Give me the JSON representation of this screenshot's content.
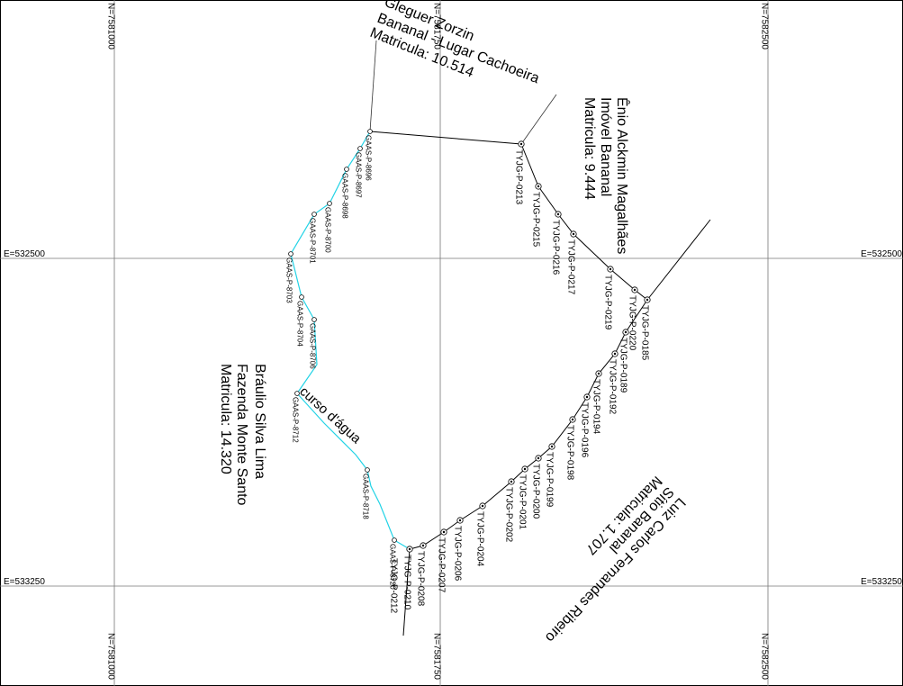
{
  "grid": {
    "north": [
      "N=7581000",
      "N=7581750",
      "N=7582500"
    ],
    "east": [
      "E=532500",
      "E=533250"
    ]
  },
  "owners": [
    {
      "lines": [
        "Gleguer Zorzin",
        "Bananal - Lugar Cachoeira",
        "Matricula: 10.514"
      ]
    },
    {
      "lines": [
        "Ênio Alckmin Magalhães",
        "Imóvel Bananal",
        "Matricula: 9.444"
      ]
    },
    {
      "lines": [
        "Luiz Carlos Fernandes Ribeiro",
        "Sítio Bananal",
        "Matricula: 1.707"
      ]
    },
    {
      "lines": [
        "Bráulio Silva Lima",
        "Fazenda Monte Santo",
        "Matricula: 14.320"
      ]
    }
  ],
  "stream_label": "curso d'água",
  "boundary_points": [
    "TYJG-P-0213",
    "TYJG-P-0215",
    "TYJG-P-0216",
    "TYJG-P-0217",
    "TYJG-P-0219",
    "TYJG-P-0220",
    "TYJG-P-0185",
    "TYJG-P-0189",
    "TYJG-P-0192",
    "TYJG-P-0194",
    "TYJG-P-0196",
    "TYJG-P-0198",
    "TYJG-P-0199",
    "TYJG-P-0200",
    "TYJG-P-0201",
    "TYJG-P-0202",
    "TYJG-P-0204",
    "TYJG-P-0206",
    "TYJG-P-0207",
    "TYJG-P-0208",
    "TYJG-P-0210",
    "TYJG-P-0212"
  ],
  "stream_points": [
    "GAAS-P-8696",
    "GAAS-P-8697",
    "GAAS-P-8698",
    "GAAS-P-8700",
    "GAAS-P-8701",
    "GAAS-P-8703",
    "GAAS-P-8704",
    "GAAS-P-8706",
    "GAAS-P-8712",
    "GAAS-P-8718",
    "GAAS-P-8720"
  ]
}
